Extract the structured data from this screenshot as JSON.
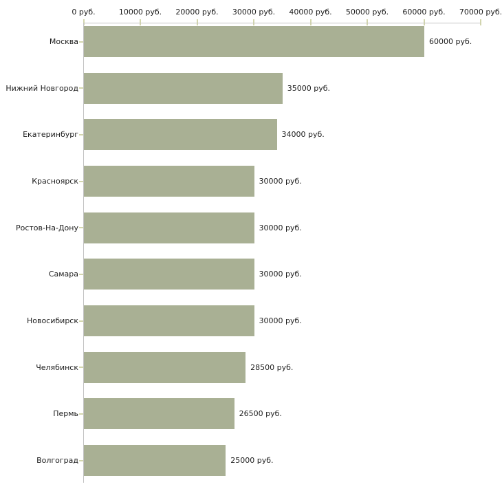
{
  "chart_data": {
    "type": "bar",
    "orientation": "horizontal",
    "title": "",
    "categories": [
      "Москва",
      "Нижний Новгород",
      "Екатеринбург",
      "Красноярск",
      "Ростов-На-Дону",
      "Самара",
      "Новосибирск",
      "Челябинск",
      "Пермь",
      "Волгоград"
    ],
    "values": [
      60000,
      35000,
      34000,
      30000,
      30000,
      30000,
      30000,
      28500,
      26500,
      25000
    ],
    "value_labels": [
      "60000 руб.",
      "35000 руб.",
      "34000 руб.",
      "30000 руб.",
      "30000 руб.",
      "30000 руб.",
      "30000 руб.",
      "28500 руб.",
      "26500 руб.",
      "25000 руб."
    ],
    "unit": "руб.",
    "x_axis": {
      "position": "top",
      "min": 0,
      "max": 70000,
      "tick_step": 10000,
      "tick_labels": [
        "0 руб.",
        "10000 руб.",
        "20000 руб.",
        "30000 руб.",
        "40000 руб.",
        "50000 руб.",
        "60000 руб.",
        "70000 руб."
      ]
    },
    "y_axis": {
      "position": "left"
    },
    "grid": false,
    "legend": "none",
    "colors": {
      "bar": "#a9b094",
      "axis_line": "#c3c3c3",
      "tick": "#d3d6ad",
      "text": "#1c1c1c",
      "background": "#ffffff"
    }
  }
}
